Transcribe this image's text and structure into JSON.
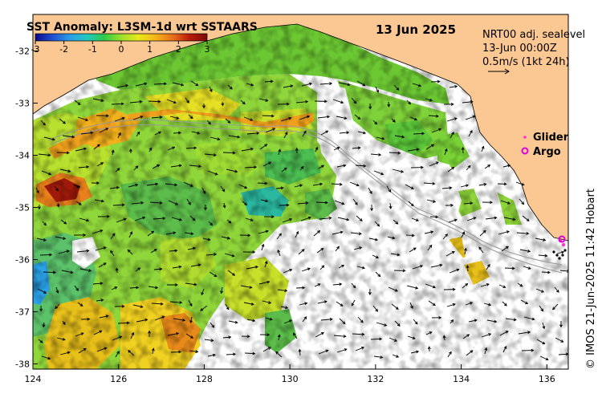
{
  "title": "SST Anomaly: L3SM-1d wrt SSTAARS",
  "date": "13 Jun 2025",
  "info_lines": [
    "NRT00 adj. sealevel",
    "13-Jun 00:00Z",
    "0.5m/s (1kt 24h)"
  ],
  "colorbar": {
    "ticks": [
      "-3",
      "-2",
      "-1",
      "0",
      "1",
      "2",
      "3"
    ],
    "min": -3,
    "max": 3,
    "colors": [
      "#08088a",
      "#1f4fd0",
      "#2a9de8",
      "#22c8c0",
      "#2ec94a",
      "#9be02a",
      "#e8e81a",
      "#f4b41a",
      "#e8701a",
      "#b81a0a",
      "#7a0a0a"
    ]
  },
  "axes": {
    "x_ticks": [
      "124",
      "126",
      "128",
      "130",
      "132",
      "134",
      "136"
    ],
    "y_ticks": [
      "-32",
      "-33",
      "-34",
      "-35",
      "-36",
      "-37",
      "-38"
    ],
    "lon_range": [
      124,
      136.5
    ],
    "lat_range": [
      -38.1,
      -31.3
    ]
  },
  "legend": {
    "glider_label": "Glider",
    "argo_label": "Argo",
    "glider_color": "#ff33cc",
    "argo_color": "#dd00dd"
  },
  "colors": {
    "land": "#fbc894",
    "sea_missing": "#ffffff"
  },
  "copyright": "© IMOS 21-Jun-2025 11:42 Hobart"
}
